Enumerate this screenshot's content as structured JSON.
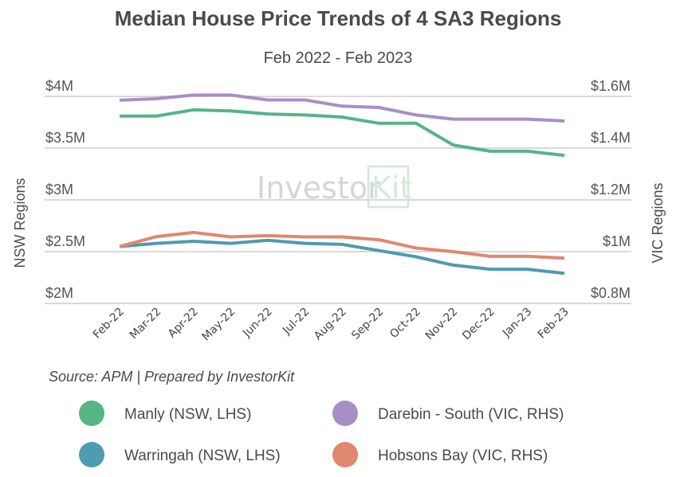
{
  "chart_data": {
    "type": "line",
    "title": "Median House Price Trends of 4 SA3 Regions",
    "subtitle": "Feb 2022 - Feb 2023",
    "source": "Source: APM | Prepared by InvestorKit",
    "watermark": "InvestorKit",
    "watermark_parts": [
      "Investor",
      "Kit"
    ],
    "categories": [
      "Feb-22",
      "Mar-22",
      "Apr-22",
      "May-22",
      "Jun-22",
      "Jul-22",
      "Aug-22",
      "Sep-22",
      "Oct-22",
      "Nov-22",
      "Dec-22",
      "Jan-23",
      "Feb-23"
    ],
    "y_left": {
      "label": "NSW Regions",
      "range": [
        2,
        4
      ],
      "ticks": [
        4,
        3.5,
        3,
        2.5,
        2
      ],
      "tick_labels": [
        "$4M",
        "$3.5M",
        "$3M",
        "$2.5M",
        "$2M"
      ],
      "unit": "$M"
    },
    "y_right": {
      "label": "VIC Regions",
      "range": [
        0.8,
        1.6
      ],
      "ticks": [
        1.6,
        1.4,
        1.2,
        1.0,
        0.8
      ],
      "tick_labels": [
        "$1.6M",
        "$1.4M",
        "$1.2M",
        "$1M",
        "$0.8M"
      ],
      "unit": "$M"
    },
    "grid": true,
    "legend_position": "bottom",
    "series": [
      {
        "name": "Manly (NSW, LHS)",
        "axis": "left",
        "color": "#55b585",
        "values": [
          3.81,
          3.81,
          3.87,
          3.86,
          3.83,
          3.82,
          3.8,
          3.74,
          3.74,
          3.53,
          3.47,
          3.47,
          3.43
        ]
      },
      {
        "name": "Darebin - South (VIC, RHS)",
        "axis": "right",
        "color": "#a98ec6",
        "values": [
          1.585,
          1.591,
          1.605,
          1.605,
          1.586,
          1.586,
          1.562,
          1.557,
          1.528,
          1.512,
          1.512,
          1.512,
          1.505
        ]
      },
      {
        "name": "Warringah (NSW, LHS)",
        "axis": "left",
        "color": "#4f9bb0",
        "values": [
          2.55,
          2.58,
          2.6,
          2.58,
          2.61,
          2.58,
          2.57,
          2.51,
          2.45,
          2.37,
          2.33,
          2.33,
          2.29
        ]
      },
      {
        "name": "Hobsons Bay (VIC, RHS)",
        "axis": "right",
        "color": "#e0886e",
        "values": [
          1.02,
          1.058,
          1.074,
          1.057,
          1.062,
          1.057,
          1.057,
          1.046,
          1.014,
          1.0,
          0.982,
          0.982,
          0.975
        ]
      }
    ],
    "legend_order": [
      0,
      1,
      2,
      3
    ]
  },
  "colors": {
    "watermark_accent": "#cfe9d9",
    "grid": "#d9d9d9",
    "text": "#4a4a4a"
  }
}
